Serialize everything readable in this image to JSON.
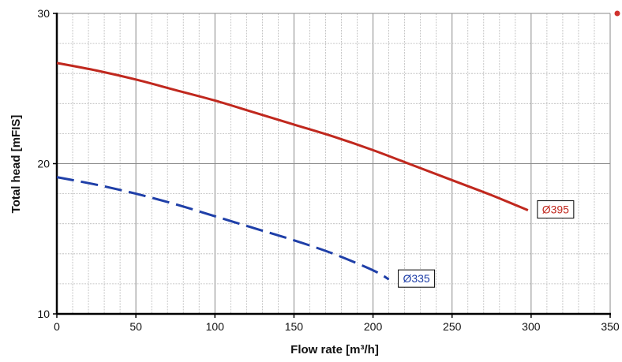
{
  "chart_data": {
    "type": "line",
    "title": "",
    "xlabel": "Flow rate [m³/h]",
    "ylabel": "Total head [mFIS]",
    "xlim": [
      0,
      350
    ],
    "ylim": [
      10,
      30
    ],
    "x_ticks": [
      0,
      50,
      100,
      150,
      200,
      250,
      300,
      350
    ],
    "y_ticks": [
      10,
      20,
      30
    ],
    "x_tick_labels": [
      "0",
      "50",
      "100",
      "150",
      "200",
      "250",
      "300",
      "350"
    ],
    "y_tick_labels": [
      "10",
      "20",
      "30"
    ],
    "grid": true,
    "legend": "none",
    "series": [
      {
        "name": "Ø395",
        "color": "#c0281e",
        "style": "solid",
        "x": [
          0,
          25,
          50,
          75,
          100,
          125,
          150,
          175,
          200,
          225,
          250,
          275,
          298
        ],
        "y": [
          26.7,
          26.2,
          25.6,
          24.9,
          24.2,
          23.4,
          22.6,
          21.8,
          20.9,
          19.9,
          18.9,
          17.9,
          16.9
        ]
      },
      {
        "name": "Ø335",
        "color": "#1f3fa8",
        "style": "dashed",
        "x": [
          0,
          25,
          50,
          75,
          100,
          125,
          150,
          175,
          200,
          210
        ],
        "y": [
          19.1,
          18.6,
          18.0,
          17.3,
          16.5,
          15.7,
          14.9,
          14.0,
          12.9,
          12.3
        ]
      }
    ]
  }
}
